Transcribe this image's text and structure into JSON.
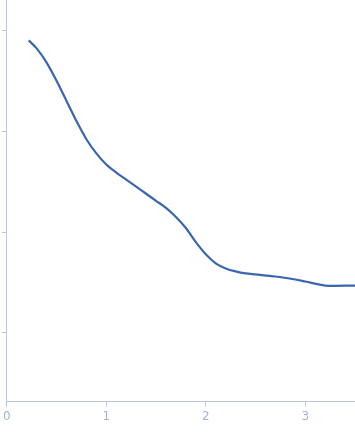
{
  "chart_data": {
    "type": "line",
    "color": "#3a66b0",
    "grid": false,
    "tick_labels": "x",
    "x": [
      0.22,
      0.3,
      0.4,
      0.5,
      0.6,
      0.7,
      0.8,
      0.9,
      1.0,
      1.1,
      1.2,
      1.3,
      1.4,
      1.5,
      1.6,
      1.7,
      1.8,
      1.9,
      2.0,
      2.1,
      2.2,
      2.3,
      2.4,
      2.5,
      2.7,
      2.9,
      3.0,
      3.2,
      3.5
    ],
    "values": [
      3.9,
      3.82,
      3.68,
      3.5,
      3.3,
      3.1,
      2.92,
      2.78,
      2.67,
      2.59,
      2.52,
      2.45,
      2.38,
      2.31,
      2.24,
      2.15,
      2.04,
      1.9,
      1.78,
      1.69,
      1.64,
      1.61,
      1.59,
      1.58,
      1.56,
      1.53,
      1.51,
      1.47,
      1.47
    ],
    "xlim": [
      0,
      3.5
    ],
    "xticks": [
      0,
      1,
      2,
      3
    ],
    "ylim": [
      0.32,
      4.3
    ],
    "yticks": [
      1,
      2,
      3,
      4
    ]
  }
}
